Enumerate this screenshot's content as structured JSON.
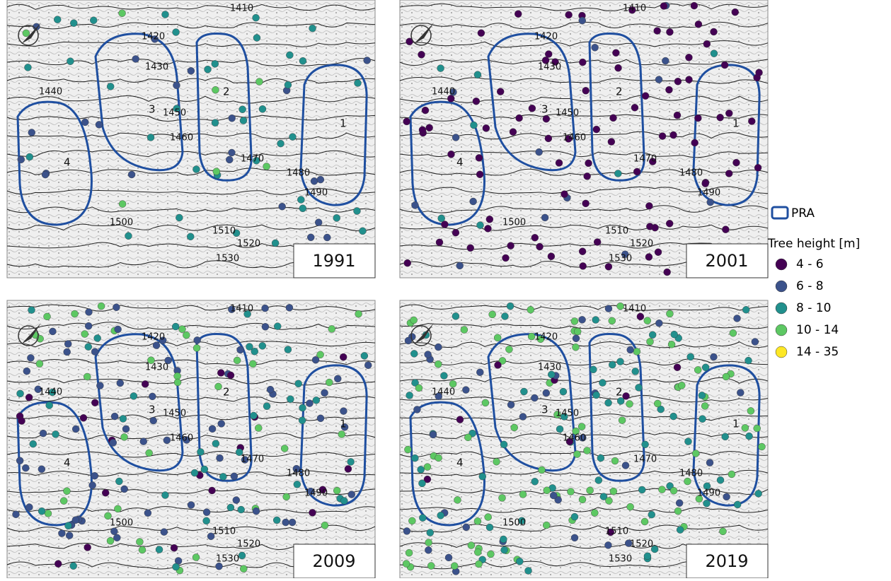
{
  "panels": [
    {
      "year": "1991"
    },
    {
      "year": "2001"
    },
    {
      "year": "2009"
    },
    {
      "year": "2019"
    }
  ],
  "contour_labels": [
    "1410",
    "1420",
    "1430",
    "1440",
    "1450",
    "1460",
    "1470",
    "1480",
    "1490",
    "1500",
    "1510",
    "1520",
    "1530"
  ],
  "pra_labels": [
    "1",
    "2",
    "3",
    "4"
  ],
  "legend": {
    "pra": "PRA",
    "pra_color": "#1f4fa0",
    "title": "Tree height [m]",
    "classes": [
      {
        "label": "4 - 6",
        "color": "#440154"
      },
      {
        "label": "6 - 8",
        "color": "#3b528b"
      },
      {
        "label": "8 - 10",
        "color": "#21908d"
      },
      {
        "label": "10 - 14",
        "color": "#5dc863"
      },
      {
        "label": "14 - 35",
        "color": "#fde725"
      }
    ]
  }
}
